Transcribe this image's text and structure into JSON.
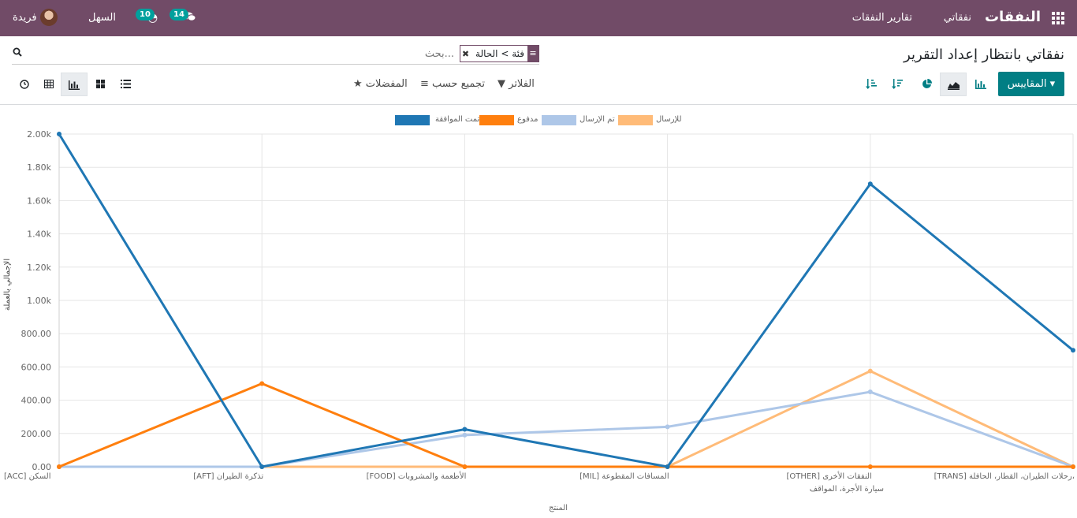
{
  "navbar": {
    "brand": "النفقات",
    "menu": [
      "نفقاتي",
      "تقارير النفقات"
    ],
    "company": "السهل",
    "user_name": "فريدة",
    "badge_activities": "10",
    "badge_messages": "14",
    "icons": [
      "apps-grid-icon",
      "clock-icon",
      "chat-icon",
      "avatar"
    ]
  },
  "control_panel": {
    "title": "نفقاتي بانتظار إعداد التقرير",
    "search_placeholder": "بحث...",
    "facet_label": "فئة > الحالة",
    "measures_label": "المقاييس",
    "filters_label": "الفلاتر",
    "groupby_label": "تجميع حسب",
    "favorites_label": "المفضلات"
  },
  "chart_data": {
    "type": "line",
    "ylabel": "الإجمالي بالعملة",
    "xlabel": "المنتج",
    "ylim": [
      0,
      2000
    ],
    "yticks": [
      "0.00",
      "200.00",
      "400.00",
      "600.00",
      "800.00",
      "1.00k",
      "1.20k",
      "1.40k",
      "1.60k",
      "1.80k",
      "2.00k"
    ],
    "categories": [
      "[ACC] السكن",
      "[AFT] تذكرة الطيران",
      "[FOOD] الأطعمة والمشروبات",
      "[MIL] المسافات المقطوعة",
      "[OTHER] النفقات الأخرى",
      "[TRANS] رحلات الطيران، القطار، الحافلة، سيارة الأجرة، المواقف"
    ],
    "grid": true,
    "legend_position": "top",
    "series": [
      {
        "name": "تمت الموافقة",
        "color": "#1f77b4",
        "values": [
          2000,
          0,
          225,
          0,
          1700,
          700
        ]
      },
      {
        "name": "مدفوع",
        "color": "#ff7f0e",
        "values": [
          0,
          500,
          0,
          0,
          0,
          0
        ]
      },
      {
        "name": "تم الإرسال",
        "color": "#aec7e8",
        "values": [
          0,
          0,
          190,
          240,
          450,
          0
        ]
      },
      {
        "name": "للإرسال",
        "color": "#ffbb78",
        "values": [
          0,
          0,
          0,
          0,
          575,
          0
        ]
      }
    ]
  }
}
